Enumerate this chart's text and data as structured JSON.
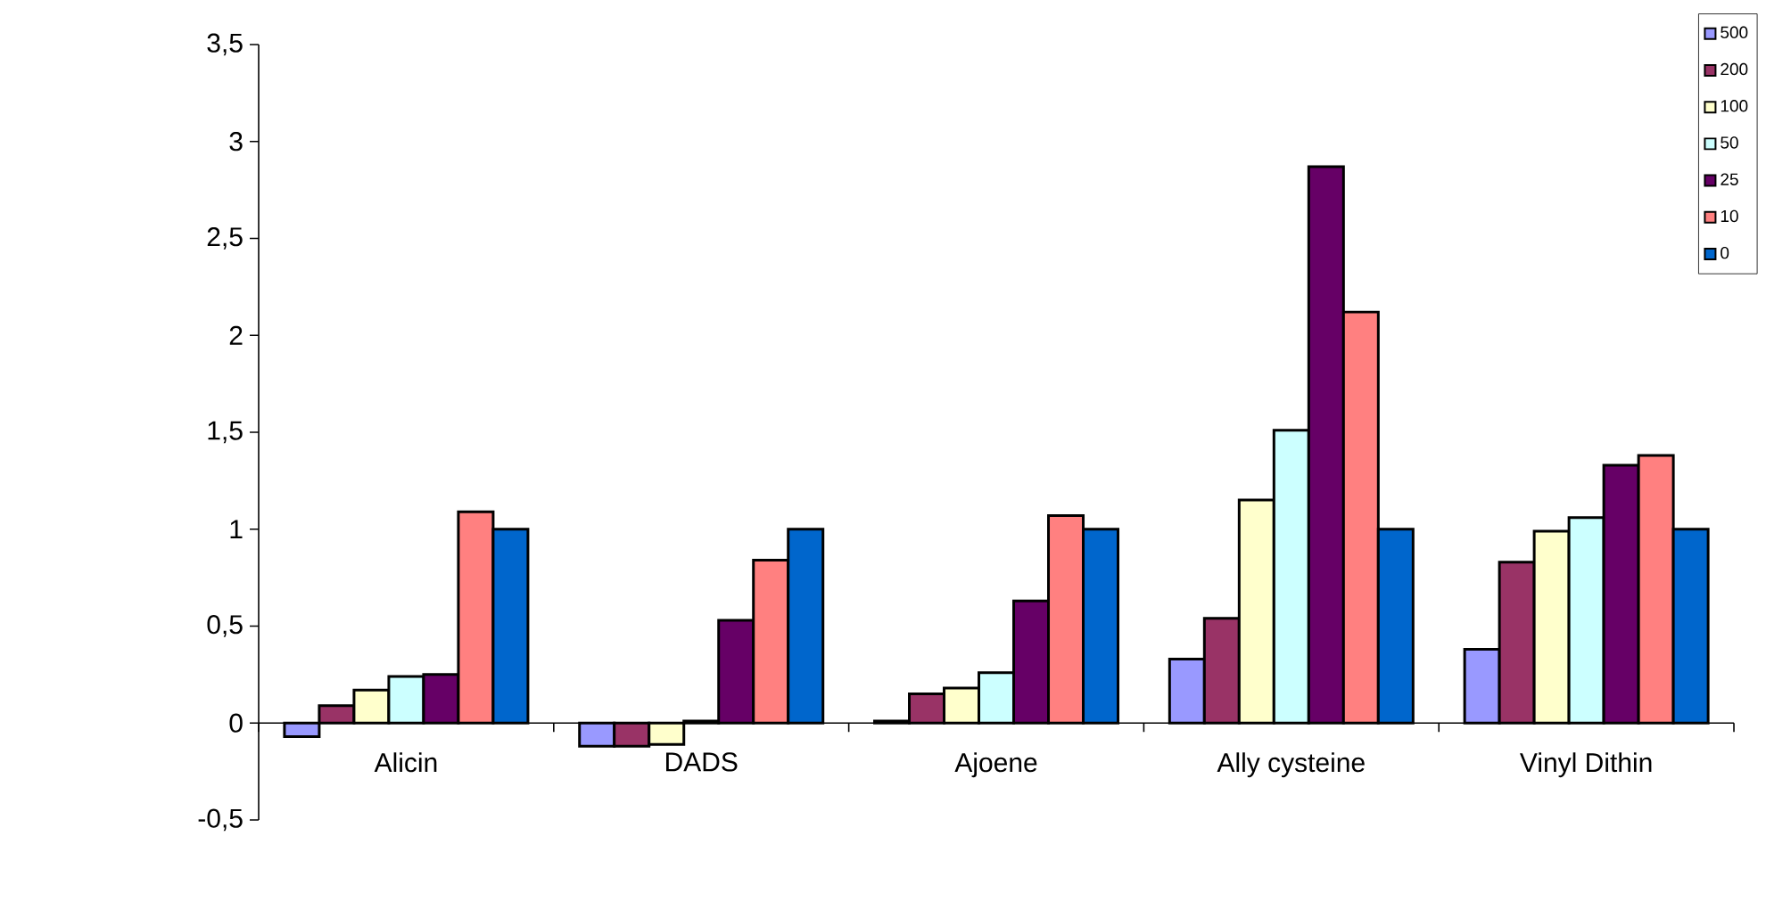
{
  "chart_data": {
    "type": "bar",
    "categories": [
      "Alicin",
      "DADS",
      "Ajoene",
      "Ally cysteine",
      "Vinyl Dithin"
    ],
    "series": [
      {
        "name": "500",
        "color": "#9999ff",
        "values": [
          -0.07,
          -0.12,
          0.01,
          0.33,
          0.38
        ]
      },
      {
        "name": "200",
        "color": "#993366",
        "values": [
          0.09,
          -0.12,
          0.15,
          0.54,
          0.83
        ]
      },
      {
        "name": "100",
        "color": "#ffffcc",
        "values": [
          0.17,
          -0.11,
          0.18,
          1.15,
          0.99
        ]
      },
      {
        "name": "50",
        "color": "#ccffff",
        "values": [
          0.24,
          0.01,
          0.26,
          1.51,
          1.06
        ]
      },
      {
        "name": "25",
        "color": "#660066",
        "values": [
          0.25,
          0.53,
          0.63,
          2.87,
          1.33
        ]
      },
      {
        "name": "10",
        "color": "#ff8080",
        "values": [
          1.09,
          0.84,
          1.07,
          2.12,
          1.38
        ]
      },
      {
        "name": "0",
        "color": "#0066cc",
        "values": [
          1.0,
          1.0,
          1.0,
          1.0,
          1.0
        ]
      }
    ],
    "ylim": [
      -0.5,
      3.5
    ],
    "yticks": [
      {
        "value": -0.5,
        "label": "-0,5"
      },
      0,
      {
        "value": 0.5,
        "label": "0,5"
      },
      1,
      {
        "value": 1.5,
        "label": "1,5"
      },
      2,
      {
        "value": 2.5,
        "label": "2,5"
      },
      3,
      {
        "value": 3.5,
        "label": "3,5"
      }
    ],
    "legend": "top right",
    "grid": false
  }
}
